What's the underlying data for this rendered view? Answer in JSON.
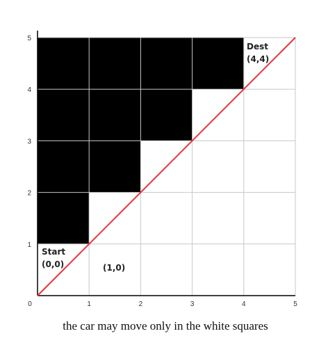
{
  "grid": {
    "size": 5,
    "x_ticks": [
      "0",
      "1",
      "2",
      "3",
      "4",
      "5"
    ],
    "y_ticks": [
      "1",
      "2",
      "3",
      "4",
      "5"
    ],
    "blocked_cells": [
      {
        "col": 0,
        "row": 1
      },
      {
        "col": 0,
        "row": 2
      },
      {
        "col": 0,
        "row": 3
      },
      {
        "col": 0,
        "row": 4
      },
      {
        "col": 1,
        "row": 2
      },
      {
        "col": 1,
        "row": 3
      },
      {
        "col": 1,
        "row": 4
      },
      {
        "col": 2,
        "row": 3
      },
      {
        "col": 2,
        "row": 4
      },
      {
        "col": 3,
        "row": 4
      }
    ],
    "diagonal": {
      "from": [
        0,
        0
      ],
      "to": [
        5,
        5
      ],
      "color": "#e8323c"
    },
    "block_color": "#000000",
    "grid_color": "#c8c8c8"
  },
  "labels": {
    "start_title": "Start",
    "start_coord": "(0,0)",
    "cell_coord": "(1,0)",
    "dest_title": "Dest",
    "dest_coord": "(4,4)"
  },
  "caption": "the car may move only in the white squares"
}
